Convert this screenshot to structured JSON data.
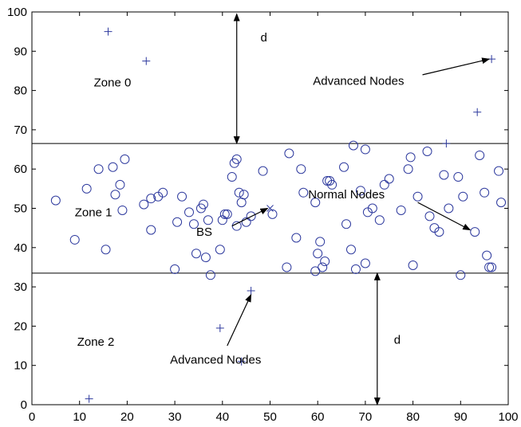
{
  "chart_data": {
    "type": "scatter",
    "title": "",
    "xlabel": "",
    "ylabel": "",
    "xlim": [
      0,
      100
    ],
    "ylim": [
      0,
      100
    ],
    "grid": false,
    "x_ticks": [
      0,
      10,
      20,
      30,
      40,
      50,
      60,
      70,
      80,
      90,
      100
    ],
    "y_ticks": [
      0,
      10,
      20,
      30,
      40,
      50,
      60,
      70,
      80,
      90,
      100
    ],
    "marker_color": "#2e3a9e",
    "zone_boundaries": [
      33.5,
      66.5
    ],
    "zones": [
      {
        "label": "Zone 0",
        "x": 13,
        "y": 82
      },
      {
        "label": "Zone 1",
        "x": 9,
        "y": 49
      },
      {
        "label": "Zone 2",
        "x": 9.5,
        "y": 16
      }
    ],
    "series": [
      {
        "marker": "o",
        "points": [
          [
            5,
            52
          ],
          [
            9,
            42
          ],
          [
            11.5,
            55
          ],
          [
            14,
            60
          ],
          [
            15.5,
            39.5
          ],
          [
            17,
            60.5
          ],
          [
            17.5,
            53.5
          ],
          [
            18.5,
            56
          ],
          [
            19,
            49.5
          ],
          [
            19.5,
            62.5
          ],
          [
            23.5,
            51
          ],
          [
            25,
            52.5
          ],
          [
            25,
            44.5
          ],
          [
            26.5,
            53
          ],
          [
            27.5,
            54
          ],
          [
            30,
            34.5
          ],
          [
            30.5,
            46.5
          ],
          [
            31.5,
            53
          ],
          [
            33,
            49
          ],
          [
            34,
            46
          ],
          [
            34.5,
            38.5
          ],
          [
            35.5,
            50
          ],
          [
            36,
            51
          ],
          [
            36.5,
            37.5
          ],
          [
            37,
            47
          ],
          [
            37.5,
            33
          ],
          [
            39.5,
            39.5
          ],
          [
            40,
            47
          ],
          [
            40.5,
            48.5
          ],
          [
            41,
            48.5
          ],
          [
            42,
            58
          ],
          [
            42.5,
            61.5
          ],
          [
            43,
            62.5
          ],
          [
            43,
            45.5
          ],
          [
            43.5,
            54
          ],
          [
            44,
            51.5
          ],
          [
            44.5,
            53.5
          ],
          [
            45,
            46.5
          ],
          [
            46,
            48
          ],
          [
            48.5,
            59.5
          ],
          [
            50.5,
            48.5
          ],
          [
            53.5,
            35
          ],
          [
            54,
            64
          ],
          [
            55.5,
            42.5
          ],
          [
            56.5,
            60
          ],
          [
            57,
            54
          ],
          [
            59.5,
            51.5
          ],
          [
            59.5,
            34
          ],
          [
            60,
            38.5
          ],
          [
            60.5,
            41.5
          ],
          [
            61,
            35
          ],
          [
            61.5,
            36.5
          ],
          [
            62,
            57
          ],
          [
            62.5,
            57
          ],
          [
            63,
            56
          ],
          [
            65.5,
            60.5
          ],
          [
            66,
            46
          ],
          [
            67,
            39.5
          ],
          [
            67.5,
            66
          ],
          [
            68,
            34.5
          ],
          [
            69,
            54.5
          ],
          [
            70,
            65
          ],
          [
            70,
            36
          ],
          [
            70.5,
            49
          ],
          [
            71.5,
            50
          ],
          [
            73,
            47
          ],
          [
            74,
            56
          ],
          [
            75,
            57.5
          ],
          [
            77.5,
            49.5
          ],
          [
            79,
            60
          ],
          [
            79.5,
            63
          ],
          [
            80,
            35.5
          ],
          [
            81,
            53
          ],
          [
            83,
            64.5
          ],
          [
            83.5,
            48
          ],
          [
            84.5,
            45
          ],
          [
            85.5,
            44
          ],
          [
            86.5,
            58.5
          ],
          [
            87.5,
            50
          ],
          [
            89.5,
            58
          ],
          [
            90,
            33
          ],
          [
            90.5,
            53
          ],
          [
            93,
            44
          ],
          [
            94,
            63.5
          ],
          [
            95,
            54
          ],
          [
            95.5,
            38
          ],
          [
            96,
            35
          ],
          [
            96.5,
            35
          ],
          [
            98,
            59.5
          ],
          [
            98.5,
            51.5
          ]
        ]
      },
      {
        "marker": "+",
        "points": [
          [
            16,
            95
          ],
          [
            24,
            87.5
          ],
          [
            96.5,
            88
          ],
          [
            93.5,
            74.5
          ],
          [
            87,
            66.5
          ],
          [
            46,
            29
          ],
          [
            39.5,
            19.5
          ],
          [
            44,
            11
          ],
          [
            12,
            1.5
          ]
        ]
      },
      {
        "marker": "x",
        "points": [
          [
            50,
            50
          ]
        ]
      }
    ],
    "annotations": [
      {
        "text": "d",
        "text_x": 48,
        "text_y": 93.5,
        "arrow": {
          "type": "double",
          "from": [
            43,
            99.5
          ],
          "to": [
            43,
            66.5
          ]
        }
      },
      {
        "text": "d",
        "text_x": 76,
        "text_y": 16.5,
        "arrow": {
          "type": "double",
          "from": [
            72.5,
            33.5
          ],
          "to": [
            72.5,
            0
          ]
        }
      },
      {
        "text": "Advanced Nodes",
        "text_x": 59,
        "text_y": 82.5,
        "arrow": {
          "type": "single",
          "from": [
            82,
            84
          ],
          "to": [
            96,
            88
          ]
        }
      },
      {
        "text": "Advanced Nodes",
        "text_x": 29,
        "text_y": 11.5,
        "arrow": {
          "type": "single",
          "from": [
            41,
            15
          ],
          "to": [
            46,
            28
          ]
        }
      },
      {
        "text": "Normal Nodes",
        "text_x": 58,
        "text_y": 53.5,
        "arrow": {
          "type": "single",
          "from": [
            81,
            51.5
          ],
          "to": [
            92,
            44.5
          ]
        }
      },
      {
        "text": "BS",
        "text_x": 34.5,
        "text_y": 44,
        "arrow": {
          "type": "single",
          "from": [
            42,
            45.5
          ],
          "to": [
            49.5,
            50
          ]
        }
      }
    ]
  }
}
